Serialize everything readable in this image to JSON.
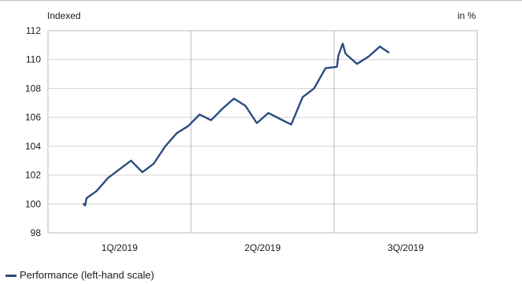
{
  "chart_data": {
    "type": "line",
    "left_axis_label": "Indexed",
    "right_axis_label": "in %",
    "ylim": [
      98,
      112
    ],
    "yticks": [
      98,
      100,
      102,
      104,
      106,
      108,
      110,
      112
    ],
    "xlim": [
      0,
      3
    ],
    "period_labels": [
      "1Q/2019",
      "2Q/2019",
      "3Q/2019"
    ],
    "period_separators": [
      1,
      2
    ],
    "grid": true,
    "legend_position": "bottom-left",
    "series": [
      {
        "name": "Performance (left-hand scale)",
        "color": "#2b4a80",
        "points": [
          [
            0.25,
            100.0
          ],
          [
            0.26,
            99.9
          ],
          [
            0.27,
            100.4
          ],
          [
            0.34,
            100.9
          ],
          [
            0.42,
            101.8
          ],
          [
            0.5,
            102.4
          ],
          [
            0.58,
            103.0
          ],
          [
            0.66,
            102.2
          ],
          [
            0.74,
            102.8
          ],
          [
            0.82,
            104.0
          ],
          [
            0.9,
            104.9
          ],
          [
            0.98,
            105.4
          ],
          [
            1.06,
            106.2
          ],
          [
            1.14,
            105.8
          ],
          [
            1.22,
            106.6
          ],
          [
            1.3,
            107.3
          ],
          [
            1.38,
            106.8
          ],
          [
            1.46,
            105.6
          ],
          [
            1.54,
            106.3
          ],
          [
            1.62,
            105.9
          ],
          [
            1.7,
            105.5
          ],
          [
            1.78,
            107.4
          ],
          [
            1.86,
            108.0
          ],
          [
            1.94,
            109.4
          ],
          [
            2.02,
            109.5
          ],
          [
            2.03,
            110.3
          ],
          [
            2.06,
            111.1
          ],
          [
            2.08,
            110.4
          ],
          [
            2.16,
            109.7
          ],
          [
            2.24,
            110.2
          ],
          [
            2.32,
            110.9
          ],
          [
            2.38,
            110.5
          ]
        ]
      }
    ]
  }
}
